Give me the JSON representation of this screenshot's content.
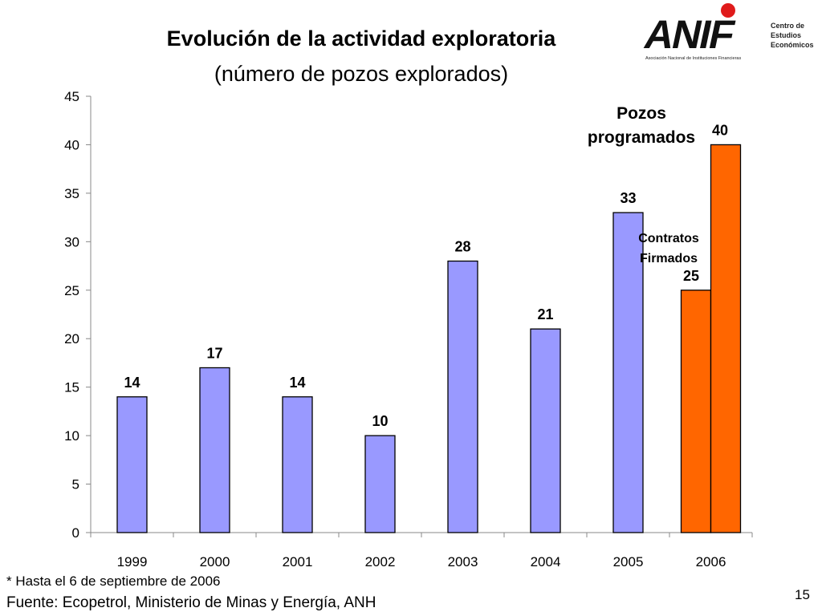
{
  "slide": {
    "title": "Evolución de la actividad exploratoria",
    "subtitle": "(número de pozos explorados)",
    "footnote": "* Hasta el 6 de septiembre de 2006",
    "source": "Fuente: Ecopetrol, Ministerio de Minas y Energía, ANH",
    "page_number": "15"
  },
  "logo": {
    "wordmark": "ANIF",
    "side_text": [
      "Centro de",
      "Estudios",
      "Económicos"
    ],
    "tagline": "Asociación Nacional de Instituciones Financieras"
  },
  "chart_data": {
    "type": "bar",
    "title": "Evolución de la actividad exploratoria",
    "subtitle": "(número de pozos explorados)",
    "categories": [
      "1999",
      "2000",
      "2001",
      "2002",
      "2003",
      "2004",
      "2005",
      "2006"
    ],
    "series": [
      {
        "values": [
          14,
          17,
          14,
          10,
          28,
          21,
          33,
          null
        ],
        "color": "#9999ff"
      },
      {
        "name": "Contratos Firmados",
        "values": [
          null,
          null,
          null,
          null,
          null,
          null,
          null,
          25
        ],
        "color": "#ff6600"
      },
      {
        "name": "Pozos programados",
        "values": [
          null,
          null,
          null,
          null,
          null,
          null,
          null,
          40
        ],
        "color": "#ff6600"
      }
    ],
    "annotations": [
      "Pozos programados",
      "Contratos Firmados"
    ],
    "ylim": [
      0,
      45
    ],
    "yticks": [
      0,
      5,
      10,
      15,
      20,
      25,
      30,
      35,
      40,
      45
    ],
    "grid": false,
    "xlabel": "",
    "ylabel": ""
  }
}
